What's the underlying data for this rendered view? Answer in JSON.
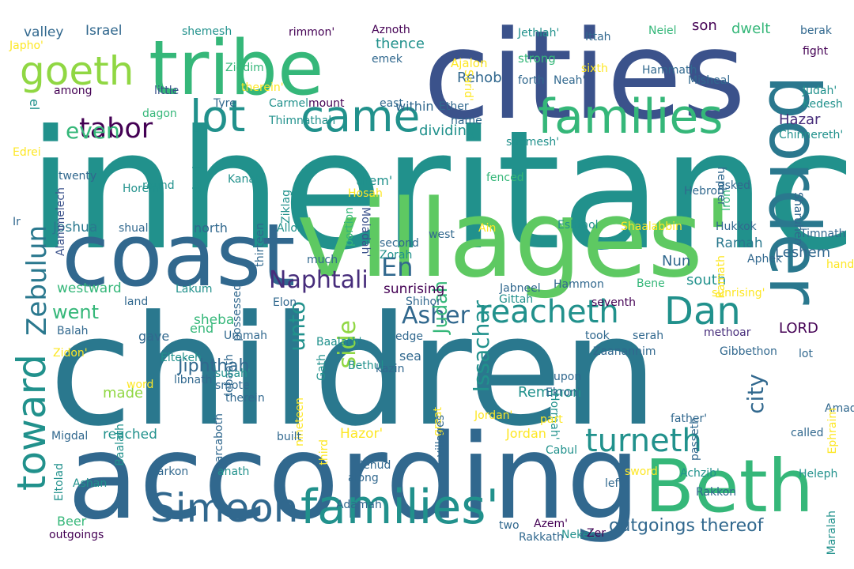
{
  "palette": {
    "background": "#ffffff",
    "viridis": [
      "#440154",
      "#3b528b",
      "#31688e",
      "#21918c",
      "#35b779",
      "#5ec962",
      "#90d743",
      "#fde725"
    ]
  },
  "words": [
    {
      "text": "inheritance",
      "color": "#21918c",
      "orientation": "horizontal"
    },
    {
      "text": "children",
      "color": "#2a788e",
      "orientation": "horizontal"
    },
    {
      "text": "according",
      "color": "#31688e",
      "orientation": "horizontal"
    },
    {
      "text": "cities",
      "color": "#3b528b",
      "orientation": "horizontal"
    },
    {
      "text": "villages'",
      "color": "#5ec962",
      "orientation": "horizontal"
    },
    {
      "text": "coast",
      "color": "#31688e",
      "orientation": "horizontal"
    },
    {
      "text": "tribe",
      "color": "#35b779",
      "orientation": "horizontal"
    },
    {
      "text": "border",
      "color": "#2a788e",
      "orientation": "vertical"
    },
    {
      "text": "Beth",
      "color": "#35b779",
      "orientation": "horizontal"
    },
    {
      "text": "families",
      "color": "#35b779",
      "orientation": "horizontal"
    },
    {
      "text": "families'",
      "color": "#21918c",
      "orientation": "horizontal"
    },
    {
      "text": "goeth",
      "color": "#90d743",
      "orientation": "horizontal"
    },
    {
      "text": "came",
      "color": "#21918c",
      "orientation": "horizontal"
    },
    {
      "text": "lot",
      "color": "#21918c",
      "orientation": "horizontal"
    },
    {
      "text": "toward",
      "color": "#21918c",
      "orientation": "vertical-up"
    },
    {
      "text": "Simeon",
      "color": "#31688e",
      "orientation": "horizontal"
    },
    {
      "text": "reacheth",
      "color": "#21918c",
      "orientation": "horizontal"
    },
    {
      "text": "Dan",
      "color": "#21918c",
      "orientation": "horizontal"
    },
    {
      "text": "turneth",
      "color": "#21918c",
      "orientation": "horizontal"
    },
    {
      "text": "tabor",
      "color": "#440154",
      "orientation": "horizontal"
    },
    {
      "text": "Issachar",
      "color": "#21918c",
      "orientation": "vertical-up"
    },
    {
      "text": "Zebulun",
      "color": "#2a788e",
      "orientation": "vertical-up"
    },
    {
      "text": "even",
      "color": "#35b779",
      "orientation": "horizontal"
    },
    {
      "text": "unto",
      "color": "#21918c",
      "orientation": "vertical-up"
    },
    {
      "text": "Naphtali",
      "color": "#472d7b",
      "orientation": "horizontal"
    },
    {
      "text": "side",
      "color": "#90d743",
      "orientation": "vertical-up"
    },
    {
      "text": "Asher",
      "color": "#31688e",
      "orientation": "horizontal"
    },
    {
      "text": "city",
      "color": "#31688e",
      "orientation": "vertical-up"
    },
    {
      "text": "went",
      "color": "#35b779",
      "orientation": "horizontal"
    },
    {
      "text": "Judah",
      "color": "#35b779",
      "orientation": "vertical-up"
    },
    {
      "text": "En",
      "color": "#31688e",
      "orientation": "horizontal"
    },
    {
      "text": "outgoings thereof",
      "color": "#31688e",
      "orientation": "horizontal"
    },
    {
      "text": "Jiphthah",
      "color": "#31688e",
      "orientation": "horizontal"
    },
    {
      "text": "Leshem",
      "color": "#31688e",
      "orientation": "horizontal"
    },
    {
      "text": "Hazar",
      "color": "#472d7b",
      "orientation": "horizontal"
    },
    {
      "text": "Rehob",
      "color": "#31688e",
      "orientation": "horizontal"
    },
    {
      "text": "dwelt",
      "color": "#35b779",
      "orientation": "horizontal"
    },
    {
      "text": "valley",
      "color": "#31688e",
      "orientation": "horizontal"
    },
    {
      "text": "Israel",
      "color": "#31688e",
      "orientation": "horizontal"
    },
    {
      "text": "sunrising",
      "color": "#440154",
      "orientation": "horizontal"
    },
    {
      "text": "westward",
      "color": "#35b779",
      "orientation": "horizontal"
    },
    {
      "text": "reached",
      "color": "#21918c",
      "orientation": "horizontal"
    },
    {
      "text": "Joshua",
      "color": "#2a788e",
      "orientation": "horizontal"
    },
    {
      "text": "sheba",
      "color": "#35b779",
      "orientation": "horizontal"
    },
    {
      "text": "Ramah",
      "color": "#2a788e",
      "orientation": "horizontal"
    },
    {
      "text": "Nun",
      "color": "#31688e",
      "orientation": "horizontal"
    },
    {
      "text": "south",
      "color": "#21918c",
      "orientation": "horizontal"
    },
    {
      "text": "dividing",
      "color": "#21918c",
      "orientation": "horizontal"
    },
    {
      "text": "Remmon",
      "color": "#21918c",
      "orientation": "horizontal"
    },
    {
      "text": "son",
      "color": "#440154",
      "orientation": "horizontal"
    },
    {
      "text": "thence",
      "color": "#21918c",
      "orientation": "horizontal"
    },
    {
      "text": "within",
      "color": "#31688e",
      "orientation": "horizontal"
    },
    {
      "text": "them'",
      "color": "#21918c",
      "orientation": "horizontal"
    },
    {
      "text": "Hazor'",
      "color": "#fde725",
      "orientation": "horizontal"
    },
    {
      "text": "sea",
      "color": "#31688e",
      "orientation": "horizontal"
    },
    {
      "text": "Jordan",
      "color": "#fde725",
      "orientation": "horizontal"
    },
    {
      "text": "north",
      "color": "#31688e",
      "orientation": "horizontal"
    },
    {
      "text": "gave",
      "color": "#31688e",
      "orientation": "horizontal"
    },
    {
      "text": "made",
      "color": "#90d743",
      "orientation": "horizontal"
    },
    {
      "text": "end",
      "color": "#35b779",
      "orientation": "horizontal"
    },
    {
      "text": "LORD",
      "color": "#440154",
      "orientation": "horizontal"
    },
    {
      "text": "el",
      "color": "#21918c",
      "orientation": "vertical"
    },
    {
      "text": "Beer",
      "color": "#35b779",
      "orientation": "horizontal"
    },
    {
      "text": "shemesh",
      "color": "#21918c",
      "orientation": "horizontal"
    },
    {
      "text": "Aznoth",
      "color": "#440154",
      "orientation": "horizontal"
    },
    {
      "text": "rimmon'",
      "color": "#440154",
      "orientation": "horizontal"
    },
    {
      "text": "Jethlah'",
      "color": "#21918c",
      "orientation": "horizontal"
    },
    {
      "text": "Ittah",
      "color": "#31688e",
      "orientation": "horizontal"
    },
    {
      "text": "Neiel",
      "color": "#35b779",
      "orientation": "horizontal"
    },
    {
      "text": "berak",
      "color": "#31688e",
      "orientation": "horizontal"
    },
    {
      "text": "Japho'",
      "color": "#fde725",
      "orientation": "horizontal"
    },
    {
      "text": "Ziddim",
      "color": "#35b779",
      "orientation": "horizontal"
    },
    {
      "text": "emek",
      "color": "#31688e",
      "orientation": "horizontal"
    },
    {
      "text": "Ajalon",
      "color": "#fde725",
      "orientation": "horizontal"
    },
    {
      "text": "strong",
      "color": "#35b779",
      "orientation": "horizontal"
    },
    {
      "text": "fight",
      "color": "#440154",
      "orientation": "horizontal"
    },
    {
      "text": "Hammath",
      "color": "#31688e",
      "orientation": "horizontal"
    },
    {
      "text": "Sarid'",
      "color": "#fde725",
      "orientation": "vertical"
    },
    {
      "text": "sixth",
      "color": "#fde725",
      "orientation": "horizontal"
    },
    {
      "text": "forth",
      "color": "#31688e",
      "orientation": "horizontal"
    },
    {
      "text": "Neah'",
      "color": "#31688e",
      "orientation": "horizontal"
    },
    {
      "text": "Misheal",
      "color": "#31688e",
      "orientation": "horizontal"
    },
    {
      "text": "therein'",
      "color": "#fde725",
      "orientation": "horizontal"
    },
    {
      "text": "among",
      "color": "#440154",
      "orientation": "horizontal"
    },
    {
      "text": "little",
      "color": "#3b528b",
      "orientation": "horizontal"
    },
    {
      "text": "Tyre",
      "color": "#31688e",
      "orientation": "horizontal"
    },
    {
      "text": "Carmel",
      "color": "#21918c",
      "orientation": "horizontal"
    },
    {
      "text": "mount",
      "color": "#440154",
      "orientation": "horizontal"
    },
    {
      "text": "east",
      "color": "#31688e",
      "orientation": "horizontal"
    },
    {
      "text": "Ether",
      "color": "#31688e",
      "orientation": "horizontal"
    },
    {
      "text": "Judah'",
      "color": "#21918c",
      "orientation": "horizontal"
    },
    {
      "text": "Kedesh",
      "color": "#21918c",
      "orientation": "horizontal"
    },
    {
      "text": "dagon",
      "color": "#35b779",
      "orientation": "horizontal"
    },
    {
      "text": "Thimnathah",
      "color": "#21918c",
      "orientation": "horizontal"
    },
    {
      "text": "name",
      "color": "#31688e",
      "orientation": "horizontal"
    },
    {
      "text": "Chinnereth'",
      "color": "#21918c",
      "orientation": "horizontal"
    },
    {
      "text": "shemesh'",
      "color": "#21918c",
      "orientation": "horizontal"
    },
    {
      "text": "Edrei",
      "color": "#fde725",
      "orientation": "horizontal"
    },
    {
      "text": "Adami",
      "color": "#21918c",
      "orientation": "vertical-up"
    },
    {
      "text": "hepher",
      "color": "#31688e",
      "orientation": "vertical"
    },
    {
      "text": "asked",
      "color": "#31688e",
      "orientation": "horizontal"
    },
    {
      "text": "twenty",
      "color": "#31688e",
      "orientation": "horizontal"
    },
    {
      "text": "Kanah",
      "color": "#21918c",
      "orientation": "horizontal"
    },
    {
      "text": "Alammelech",
      "color": "#3b528b",
      "orientation": "vertical-up"
    },
    {
      "text": "round",
      "color": "#21918c",
      "orientation": "horizontal"
    },
    {
      "text": "Ziklag",
      "color": "#21918c",
      "orientation": "vertical-up"
    },
    {
      "text": "Hosah",
      "color": "#fde725",
      "orientation": "horizontal"
    },
    {
      "text": "fenced",
      "color": "#35b779",
      "orientation": "horizontal"
    },
    {
      "text": "Iron",
      "color": "#35b779",
      "orientation": "vertical-up"
    },
    {
      "text": "Sharuhen",
      "color": "#31688e",
      "orientation": "vertical"
    },
    {
      "text": "Horem",
      "color": "#21918c",
      "orientation": "horizontal"
    },
    {
      "text": "Hebron",
      "color": "#31688e",
      "orientation": "horizontal"
    },
    {
      "text": "portion",
      "color": "#35b779",
      "orientation": "vertical-up"
    },
    {
      "text": "Moladah'",
      "color": "#3b528b",
      "orientation": "vertical"
    },
    {
      "text": "Ir",
      "color": "#31688e",
      "orientation": "horizontal"
    },
    {
      "text": "shual",
      "color": "#31688e",
      "orientation": "horizontal"
    },
    {
      "text": "thirteen",
      "color": "#31688e",
      "orientation": "vertical-up"
    },
    {
      "text": "Allon",
      "color": "#21918c",
      "orientation": "horizontal"
    },
    {
      "text": "Ain",
      "color": "#fde725",
      "orientation": "horizontal"
    },
    {
      "text": "Eshtaol",
      "color": "#21918c",
      "orientation": "horizontal"
    },
    {
      "text": "Shaalabbin",
      "color": "#fde725",
      "orientation": "horizontal"
    },
    {
      "text": "Hukkok",
      "color": "#31688e",
      "orientation": "horizontal"
    },
    {
      "text": "Timnath",
      "color": "#31688e",
      "orientation": "horizontal"
    },
    {
      "text": "second",
      "color": "#31688e",
      "orientation": "horizontal"
    },
    {
      "text": "Zorah",
      "color": "#21918c",
      "orientation": "horizontal"
    },
    {
      "text": "west",
      "color": "#31688e",
      "orientation": "horizontal"
    },
    {
      "text": "much",
      "color": "#31688e",
      "orientation": "horizontal"
    },
    {
      "text": "Ramath",
      "color": "#fde725",
      "orientation": "vertical-up"
    },
    {
      "text": "Aphek",
      "color": "#31688e",
      "orientation": "horizontal"
    },
    {
      "text": "hand'",
      "color": "#fde725",
      "orientation": "horizontal"
    },
    {
      "text": "Lakum",
      "color": "#21918c",
      "orientation": "horizontal"
    },
    {
      "text": "possessed",
      "color": "#31688e",
      "orientation": "vertical-up"
    },
    {
      "text": "Jabneel",
      "color": "#31688e",
      "orientation": "horizontal"
    },
    {
      "text": "Hammon",
      "color": "#31688e",
      "orientation": "horizontal"
    },
    {
      "text": "Bene",
      "color": "#35b779",
      "orientation": "horizontal"
    },
    {
      "text": "sunrising'",
      "color": "#fde725",
      "orientation": "horizontal"
    },
    {
      "text": "land",
      "color": "#31688e",
      "orientation": "horizontal"
    },
    {
      "text": "Elon",
      "color": "#31688e",
      "orientation": "horizontal"
    },
    {
      "text": "Shihor",
      "color": "#31688e",
      "orientation": "horizontal"
    },
    {
      "text": "Gittah",
      "color": "#21918c",
      "orientation": "horizontal"
    },
    {
      "text": "seventh",
      "color": "#440154",
      "orientation": "horizontal"
    },
    {
      "text": "Balah",
      "color": "#31688e",
      "orientation": "horizontal"
    },
    {
      "text": "Ummah",
      "color": "#31688e",
      "orientation": "horizontal"
    },
    {
      "text": "Baalath'",
      "color": "#21918c",
      "orientation": "horizontal"
    },
    {
      "text": "edge",
      "color": "#31688e",
      "orientation": "horizontal"
    },
    {
      "text": "took",
      "color": "#31688e",
      "orientation": "horizontal"
    },
    {
      "text": "serah",
      "color": "#31688e",
      "orientation": "horizontal"
    },
    {
      "text": "methoar",
      "color": "#472d7b",
      "orientation": "horizontal"
    },
    {
      "text": "Zaanannim",
      "color": "#31688e",
      "orientation": "horizontal"
    },
    {
      "text": "Gibbethon",
      "color": "#31688e",
      "orientation": "horizontal"
    },
    {
      "text": "lot",
      "color": "#31688e",
      "orientation": "horizontal"
    },
    {
      "text": "Zidon'",
      "color": "#fde725",
      "orientation": "horizontal"
    },
    {
      "text": "Eltekeh",
      "color": "#21918c",
      "orientation": "horizontal"
    },
    {
      "text": "lebaoth",
      "color": "#31688e",
      "orientation": "vertical-up"
    },
    {
      "text": "Gath",
      "color": "#21918c",
      "orientation": "vertical-up"
    },
    {
      "text": "Bethul",
      "color": "#21918c",
      "orientation": "horizontal"
    },
    {
      "text": "upon",
      "color": "#31688e",
      "orientation": "horizontal"
    },
    {
      "text": "susah'",
      "color": "#21918c",
      "orientation": "horizontal"
    },
    {
      "text": "smote",
      "color": "#31688e",
      "orientation": "horizontal"
    },
    {
      "text": "therein",
      "color": "#31688e",
      "orientation": "horizontal"
    },
    {
      "text": "nineteen",
      "color": "#fde725",
      "orientation": "vertical-up"
    },
    {
      "text": "kazin",
      "color": "#31688e",
      "orientation": "horizontal"
    },
    {
      "text": "Ekron'",
      "color": "#31688e",
      "orientation": "horizontal"
    },
    {
      "text": "Hormah'",
      "color": "#21918c",
      "orientation": "vertical"
    },
    {
      "text": "Amad",
      "color": "#31688e",
      "orientation": "horizontal"
    },
    {
      "text": "Jordan'",
      "color": "#fde725",
      "orientation": "horizontal"
    },
    {
      "text": "father'",
      "color": "#31688e",
      "orientation": "horizontal"
    },
    {
      "text": "part",
      "color": "#fde725",
      "orientation": "horizontal"
    },
    {
      "text": "great",
      "color": "#fde725",
      "orientation": "vertical-up"
    },
    {
      "text": "libnath'",
      "color": "#31688e",
      "orientation": "horizontal"
    },
    {
      "text": "marcaboth",
      "color": "#31688e",
      "orientation": "vertical-up"
    },
    {
      "text": "word",
      "color": "#fde725",
      "orientation": "horizontal"
    },
    {
      "text": "passeth",
      "color": "#31688e",
      "orientation": "vertical-up"
    },
    {
      "text": "Ephraim",
      "color": "#fde725",
      "orientation": "vertical-up"
    },
    {
      "text": "called",
      "color": "#31688e",
      "orientation": "horizontal"
    },
    {
      "text": "Migdal",
      "color": "#31688e",
      "orientation": "horizontal"
    },
    {
      "text": "built",
      "color": "#31688e",
      "orientation": "horizontal"
    },
    {
      "text": "Cabul",
      "color": "#21918c",
      "orientation": "horizontal"
    },
    {
      "text": "left",
      "color": "#31688e",
      "orientation": "horizontal"
    },
    {
      "text": "sword",
      "color": "#fde725",
      "orientation": "horizontal"
    },
    {
      "text": "Achzib'",
      "color": "#21918c",
      "orientation": "horizontal"
    },
    {
      "text": "Heleph",
      "color": "#21918c",
      "orientation": "horizontal"
    },
    {
      "text": "third",
      "color": "#fde725",
      "orientation": "vertical-up"
    },
    {
      "text": "villages",
      "color": "#31688e",
      "orientation": "vertical-up"
    },
    {
      "text": "Jehud",
      "color": "#31688e",
      "orientation": "horizontal"
    },
    {
      "text": "along",
      "color": "#31688e",
      "orientation": "horizontal"
    },
    {
      "text": "jarkon",
      "color": "#31688e",
      "orientation": "horizontal"
    },
    {
      "text": "anath",
      "color": "#21918c",
      "orientation": "horizontal"
    },
    {
      "text": "Ashan",
      "color": "#21918c",
      "orientation": "horizontal"
    },
    {
      "text": "Baalath",
      "color": "#21918c",
      "orientation": "vertical-up"
    },
    {
      "text": "Eltolad",
      "color": "#21918c",
      "orientation": "vertical-up"
    },
    {
      "text": "Rakkon",
      "color": "#31688e",
      "orientation": "horizontal"
    },
    {
      "text": "Adamah",
      "color": "#31688e",
      "orientation": "horizontal"
    },
    {
      "text": "Maralah",
      "color": "#21918c",
      "orientation": "vertical-up"
    },
    {
      "text": "Nekeb",
      "color": "#21918c",
      "orientation": "horizontal"
    },
    {
      "text": "two",
      "color": "#31688e",
      "orientation": "horizontal"
    },
    {
      "text": "Azem'",
      "color": "#440154",
      "orientation": "horizontal"
    },
    {
      "text": "Zer",
      "color": "#440154",
      "orientation": "horizontal"
    },
    {
      "text": "outgoings",
      "color": "#440154",
      "orientation": "horizontal"
    },
    {
      "text": "Rakkath",
      "color": "#31688e",
      "orientation": "horizontal"
    }
  ]
}
